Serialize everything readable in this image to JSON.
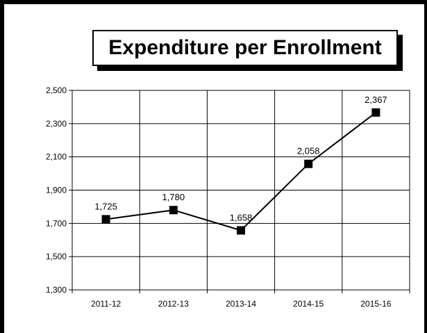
{
  "chart_data": {
    "type": "line",
    "title": "Expenditure per Enrollment",
    "categories": [
      "2011-12",
      "2012-13",
      "2013-14",
      "2014-15",
      "2015-16"
    ],
    "values": [
      1725,
      1780,
      1658,
      2058,
      2367
    ],
    "data_labels": [
      "1,725",
      "1,780",
      "1,658",
      "2,058",
      "2,367"
    ],
    "xlabel": "",
    "ylabel": "",
    "ylim": [
      1300,
      2500
    ],
    "yticks": [
      1300,
      1500,
      1700,
      1900,
      2100,
      2300,
      2500
    ],
    "ytick_labels": [
      "1,300",
      "1,500",
      "1,700",
      "1,900",
      "2,100",
      "2,300",
      "2,500"
    ],
    "grid": true,
    "legend": "none",
    "line_color": "#000000",
    "marker": "square"
  }
}
